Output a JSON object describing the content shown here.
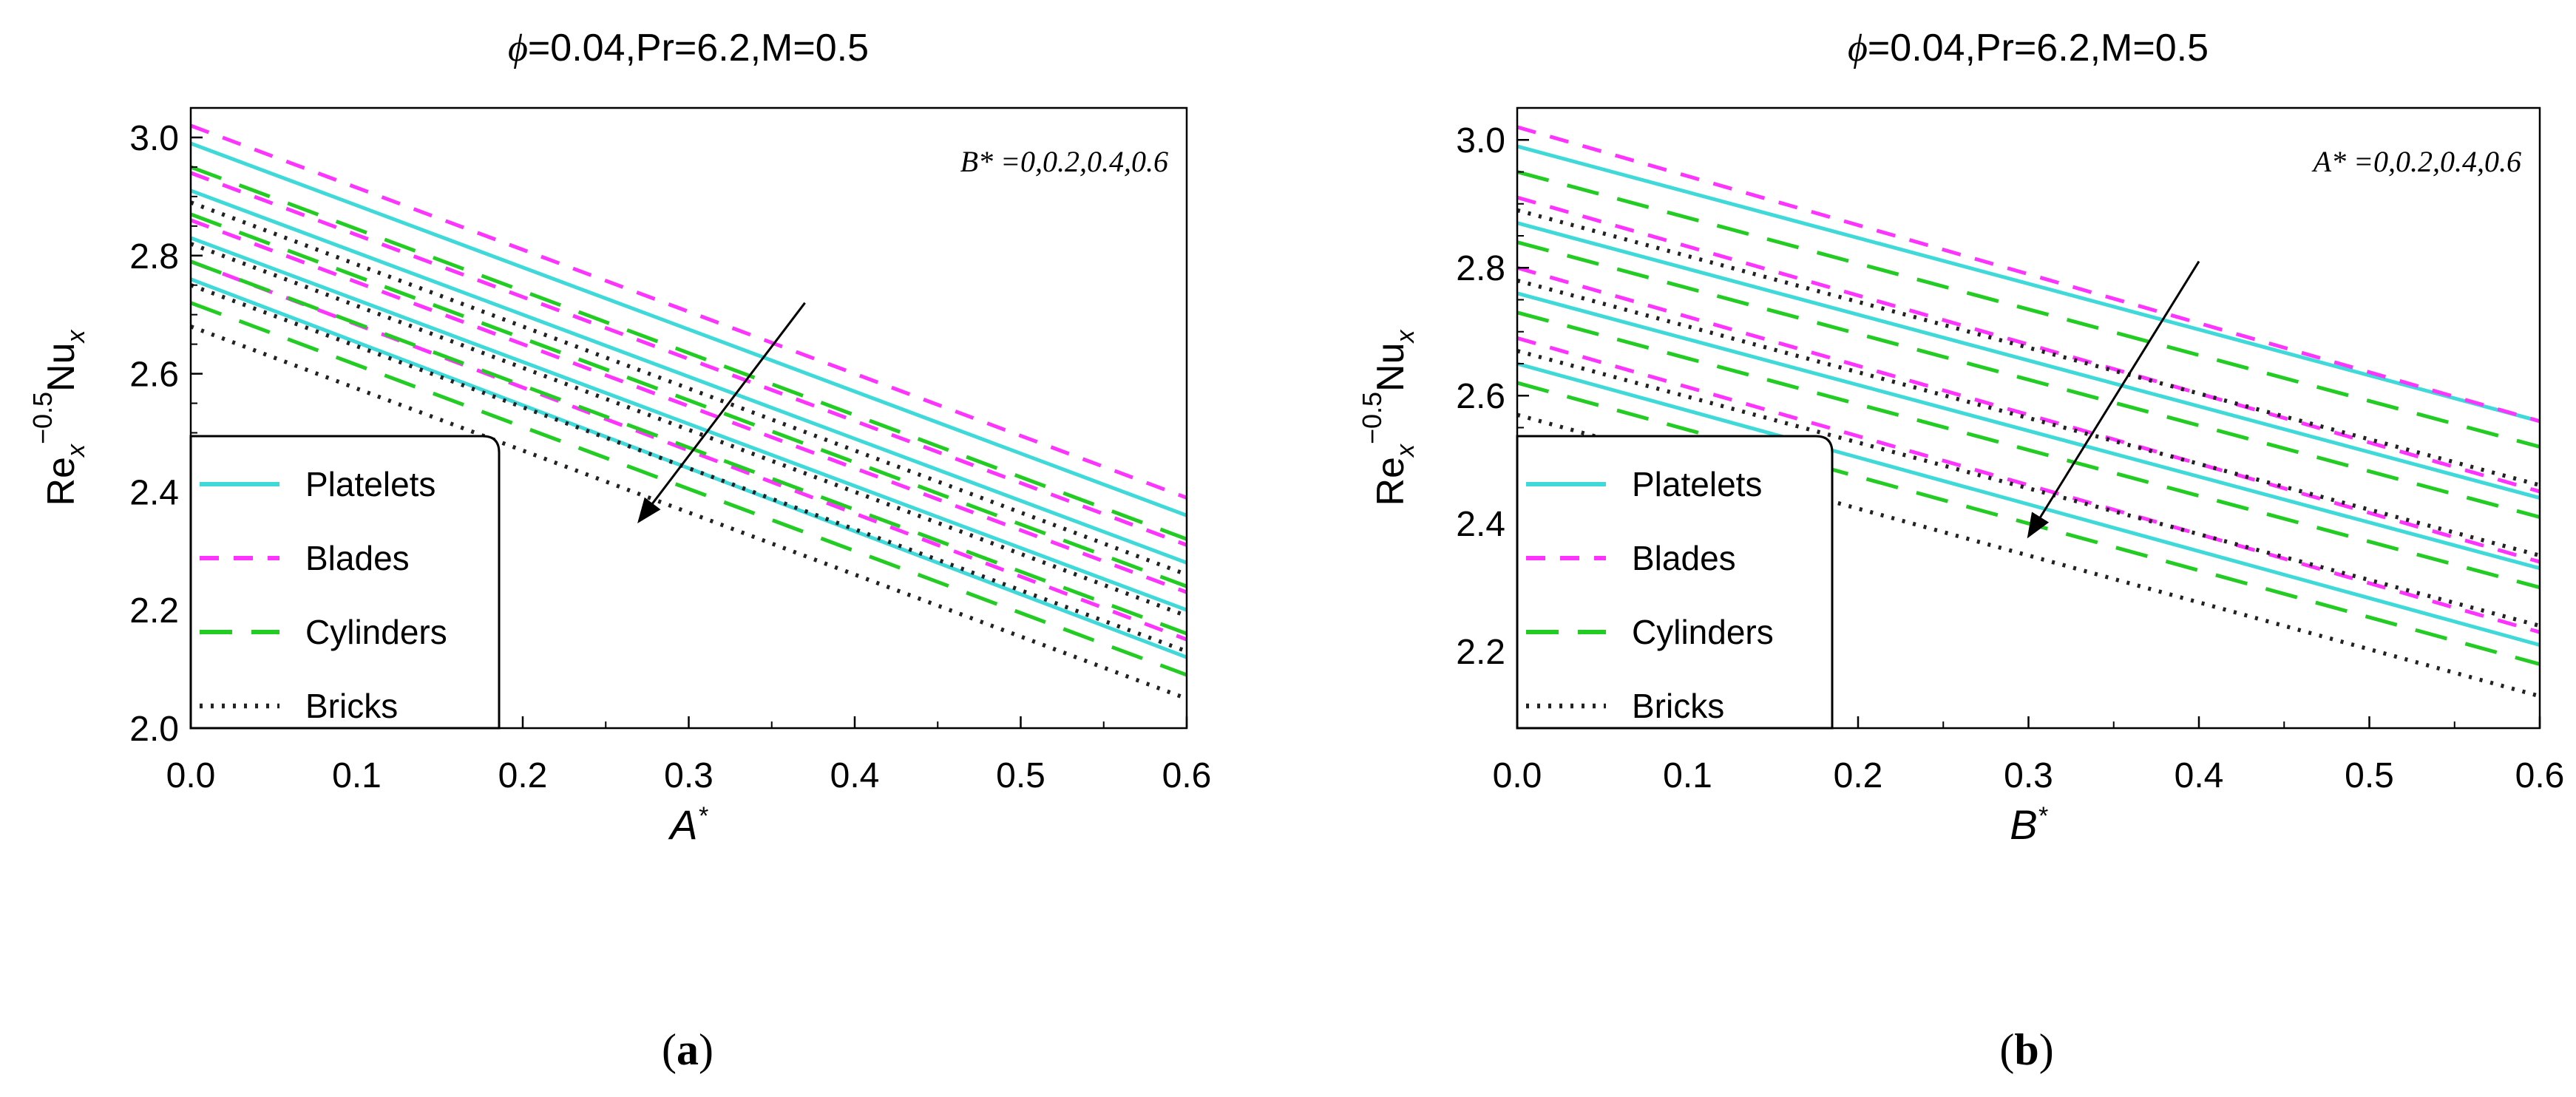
{
  "colors": {
    "platelets": "#3fd9d9",
    "blades": "#ff33ff",
    "cylinders": "#22cc22",
    "bricks": "#222222",
    "axis": "#000000"
  },
  "chart_data": [
    {
      "type": "line",
      "panel_label": "a",
      "title_symbol": "ϕ",
      "title_rest": "=0.04,Pr=6.2,M=0.5",
      "xlabel": "A",
      "xlabel_sup": "*",
      "ylabel_base": "Re",
      "ylabel_sub1": "x",
      "ylabel_sup": "−0.5",
      "ylabel_mid": "Nu",
      "ylabel_sub2": "x",
      "xlim": [
        0,
        0.6
      ],
      "ylim": [
        2.0,
        3.05
      ],
      "xticks": [
        "0.0",
        "0.1",
        "0.2",
        "0.3",
        "0.4",
        "0.5",
        "0.6"
      ],
      "yticks": [
        "2.0",
        "2.2",
        "2.4",
        "2.6",
        "2.8",
        "3.0"
      ],
      "annotation": "B* =0,0.2,0.4,0.6",
      "arrow": {
        "from": [
          0.37,
          2.72
        ],
        "to": [
          0.27,
          2.35
        ]
      },
      "legend": [
        "Platelets",
        "Blades",
        "Cylinders",
        "Bricks"
      ],
      "series": [
        {
          "name": "Platelets",
          "shape": "platelets",
          "param": 0,
          "x": [
            0,
            0.6
          ],
          "y": [
            2.99,
            2.36
          ]
        },
        {
          "name": "Platelets",
          "shape": "platelets",
          "param": 0.2,
          "x": [
            0,
            0.6
          ],
          "y": [
            2.91,
            2.28
          ]
        },
        {
          "name": "Platelets",
          "shape": "platelets",
          "param": 0.4,
          "x": [
            0,
            0.6
          ],
          "y": [
            2.83,
            2.2
          ]
        },
        {
          "name": "Platelets",
          "shape": "platelets",
          "param": 0.6,
          "x": [
            0,
            0.6
          ],
          "y": [
            2.76,
            2.12
          ]
        },
        {
          "name": "Blades",
          "shape": "blades",
          "param": 0,
          "x": [
            0,
            0.6
          ],
          "y": [
            3.02,
            2.39
          ]
        },
        {
          "name": "Blades",
          "shape": "blades",
          "param": 0.2,
          "x": [
            0,
            0.6
          ],
          "y": [
            2.94,
            2.31
          ]
        },
        {
          "name": "Blades",
          "shape": "blades",
          "param": 0.4,
          "x": [
            0,
            0.6
          ],
          "y": [
            2.86,
            2.23
          ]
        },
        {
          "name": "Blades",
          "shape": "blades",
          "param": 0.6,
          "x": [
            0,
            0.6
          ],
          "y": [
            2.79,
            2.15
          ]
        },
        {
          "name": "Cylinders",
          "shape": "cylinders",
          "param": 0,
          "x": [
            0,
            0.6
          ],
          "y": [
            2.95,
            2.32
          ]
        },
        {
          "name": "Cylinders",
          "shape": "cylinders",
          "param": 0.2,
          "x": [
            0,
            0.6
          ],
          "y": [
            2.87,
            2.24
          ]
        },
        {
          "name": "Cylinders",
          "shape": "cylinders",
          "param": 0.4,
          "x": [
            0,
            0.6
          ],
          "y": [
            2.79,
            2.16
          ]
        },
        {
          "name": "Cylinders",
          "shape": "cylinders",
          "param": 0.6,
          "x": [
            0,
            0.6
          ],
          "y": [
            2.72,
            2.09
          ]
        },
        {
          "name": "Bricks",
          "shape": "bricks",
          "param": 0,
          "x": [
            0,
            0.6
          ],
          "y": [
            2.89,
            2.26
          ]
        },
        {
          "name": "Bricks",
          "shape": "bricks",
          "param": 0.2,
          "x": [
            0,
            0.6
          ],
          "y": [
            2.82,
            2.19
          ]
        },
        {
          "name": "Bricks",
          "shape": "bricks",
          "param": 0.4,
          "x": [
            0,
            0.6
          ],
          "y": [
            2.75,
            2.13
          ]
        },
        {
          "name": "Bricks",
          "shape": "bricks",
          "param": 0.6,
          "x": [
            0,
            0.6
          ],
          "y": [
            2.68,
            2.05
          ]
        }
      ]
    },
    {
      "type": "line",
      "panel_label": "b",
      "title_symbol": "ϕ",
      "title_rest": "=0.04,Pr=6.2,M=0.5",
      "xlabel": "B",
      "xlabel_sup": "*",
      "ylabel_base": "Re",
      "ylabel_sub1": "x",
      "ylabel_sup": "−0.5",
      "ylabel_mid": "Nu",
      "ylabel_sub2": "x",
      "xlim": [
        0,
        0.6
      ],
      "ylim": [
        2.08,
        3.05
      ],
      "xticks": [
        "0.0",
        "0.1",
        "0.2",
        "0.3",
        "0.4",
        "0.5",
        "0.6"
      ],
      "yticks": [
        "2.2",
        "2.4",
        "2.6",
        "2.8",
        "3.0"
      ],
      "annotation": "A* =0,0.2,0.4,0.6",
      "arrow": {
        "from": [
          0.4,
          2.81
        ],
        "to": [
          0.3,
          2.38
        ]
      },
      "legend": [
        "Platelets",
        "Blades",
        "Cylinders",
        "Bricks"
      ],
      "series": [
        {
          "name": "Platelets",
          "shape": "platelets",
          "param": 0,
          "x": [
            0,
            0.6
          ],
          "y": [
            2.99,
            2.56
          ]
        },
        {
          "name": "Platelets",
          "shape": "platelets",
          "param": 0.2,
          "x": [
            0,
            0.6
          ],
          "y": [
            2.87,
            2.44
          ]
        },
        {
          "name": "Platelets",
          "shape": "platelets",
          "param": 0.4,
          "x": [
            0,
            0.6
          ],
          "y": [
            2.76,
            2.33
          ]
        },
        {
          "name": "Platelets",
          "shape": "platelets",
          "param": 0.6,
          "x": [
            0,
            0.6
          ],
          "y": [
            2.65,
            2.21
          ]
        },
        {
          "name": "Blades",
          "shape": "blades",
          "param": 0,
          "x": [
            0,
            0.6
          ],
          "y": [
            3.02,
            2.56
          ]
        },
        {
          "name": "Blades",
          "shape": "blades",
          "param": 0.2,
          "x": [
            0,
            0.6
          ],
          "y": [
            2.91,
            2.45
          ]
        },
        {
          "name": "Blades",
          "shape": "blades",
          "param": 0.4,
          "x": [
            0,
            0.6
          ],
          "y": [
            2.8,
            2.34
          ]
        },
        {
          "name": "Blades",
          "shape": "blades",
          "param": 0.6,
          "x": [
            0,
            0.6
          ],
          "y": [
            2.69,
            2.23
          ]
        },
        {
          "name": "Cylinders",
          "shape": "cylinders",
          "param": 0,
          "x": [
            0,
            0.6
          ],
          "y": [
            2.95,
            2.52
          ]
        },
        {
          "name": "Cylinders",
          "shape": "cylinders",
          "param": 0.2,
          "x": [
            0,
            0.6
          ],
          "y": [
            2.84,
            2.41
          ]
        },
        {
          "name": "Cylinders",
          "shape": "cylinders",
          "param": 0.4,
          "x": [
            0,
            0.6
          ],
          "y": [
            2.73,
            2.3
          ]
        },
        {
          "name": "Cylinders",
          "shape": "cylinders",
          "param": 0.6,
          "x": [
            0,
            0.6
          ],
          "y": [
            2.62,
            2.18
          ]
        },
        {
          "name": "Bricks",
          "shape": "bricks",
          "param": 0,
          "x": [
            0,
            0.6
          ],
          "y": [
            2.89,
            2.46
          ]
        },
        {
          "name": "Bricks",
          "shape": "bricks",
          "param": 0.2,
          "x": [
            0,
            0.6
          ],
          "y": [
            2.78,
            2.35
          ]
        },
        {
          "name": "Bricks",
          "shape": "bricks",
          "param": 0.4,
          "x": [
            0,
            0.6
          ],
          "y": [
            2.67,
            2.24
          ]
        },
        {
          "name": "Bricks",
          "shape": "bricks",
          "param": 0.6,
          "x": [
            0,
            0.6
          ],
          "y": [
            2.57,
            2.13
          ]
        }
      ]
    }
  ]
}
